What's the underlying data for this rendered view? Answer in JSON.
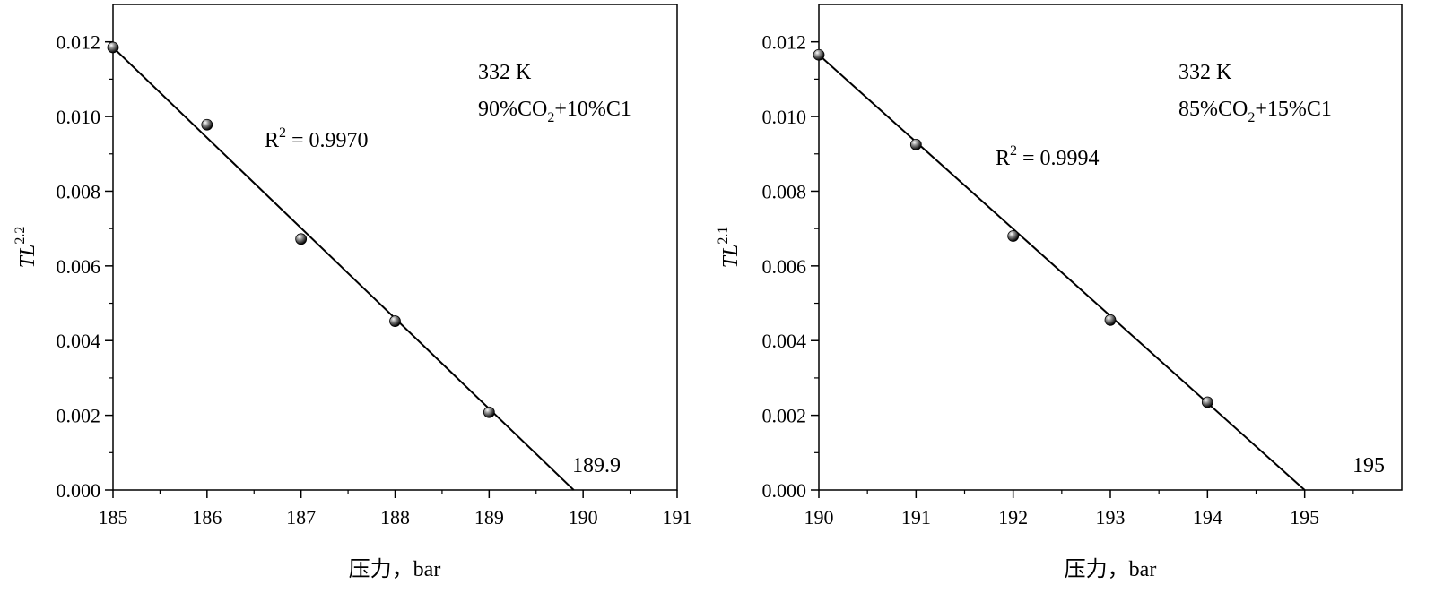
{
  "chart_data": [
    {
      "type": "scatter",
      "panel": "left",
      "xlim": [
        185,
        191
      ],
      "ylim": [
        0,
        0.013
      ],
      "xticks": [
        "185",
        "186",
        "187",
        "188",
        "189",
        "190",
        "191"
      ],
      "yticks": [
        "0.000",
        "0.002",
        "0.004",
        "0.006",
        "0.008",
        "0.010",
        "0.012"
      ],
      "xlabel": "压力，bar",
      "ylabel": {
        "base": "TL",
        "exp": "2.2"
      },
      "points": [
        {
          "x": 185,
          "y": 0.01185
        },
        {
          "x": 186,
          "y": 0.00978
        },
        {
          "x": 187,
          "y": 0.00672
        },
        {
          "x": 188,
          "y": 0.00452
        },
        {
          "x": 189,
          "y": 0.00208
        }
      ],
      "fit_line": {
        "x": [
          185,
          189.9
        ],
        "y": [
          0.01185,
          0.0
        ]
      },
      "r2": {
        "prefix": "R",
        "exp": "2",
        "text": " = 0.9970"
      },
      "condition": {
        "temperature": "332 K",
        "composition": {
          "pre": "90%CO",
          "sub": "2",
          "post": "+10%C1"
        }
      },
      "intercept_label": "189.9",
      "minor_ticks": true,
      "grid": false
    },
    {
      "type": "scatter",
      "panel": "right",
      "xlim": [
        190,
        196
      ],
      "ylim": [
        0,
        0.013
      ],
      "xticks": [
        "190",
        "191",
        "192",
        "193",
        "194",
        "195"
      ],
      "yticks": [
        "0.000",
        "0.002",
        "0.004",
        "0.006",
        "0.008",
        "0.010",
        "0.012"
      ],
      "xlabel": "压力，bar",
      "ylabel": {
        "base": "TL",
        "exp": "2.1"
      },
      "points": [
        {
          "x": 190,
          "y": 0.01165
        },
        {
          "x": 191,
          "y": 0.00925
        },
        {
          "x": 192,
          "y": 0.0068
        },
        {
          "x": 193,
          "y": 0.00455
        },
        {
          "x": 194,
          "y": 0.00235
        }
      ],
      "fit_line": {
        "x": [
          190,
          195
        ],
        "y": [
          0.01165,
          0.0
        ]
      },
      "r2": {
        "prefix": "R",
        "exp": "2",
        "text": " = 0.9994"
      },
      "condition": {
        "temperature": "332 K",
        "composition": {
          "pre": "85%CO",
          "sub": "2",
          "post": "+15%C1"
        }
      },
      "intercept_label": "195",
      "minor_ticks": true,
      "grid": false
    }
  ]
}
